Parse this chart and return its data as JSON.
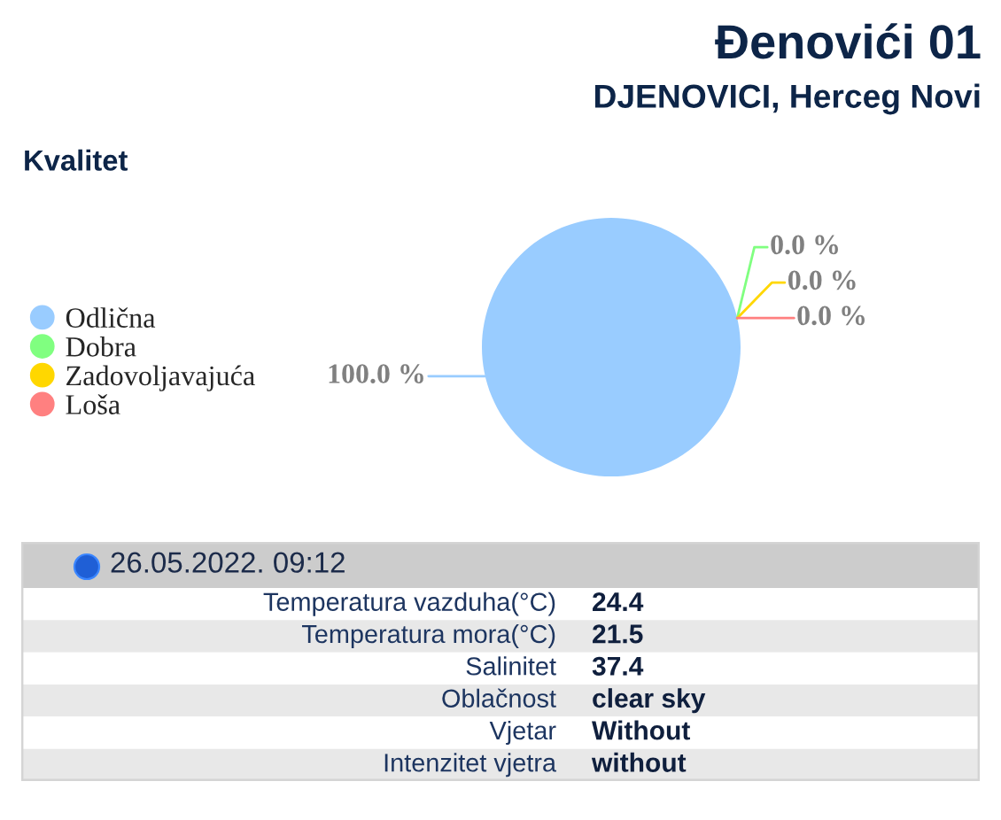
{
  "chart_data": [
    {
      "type": "other",
      "title": "Đenovići 01",
      "subtitle": "DJENOVICI, Herceg Novi"
    },
    {
      "type": "pie",
      "title": "Kvalitet",
      "categories": [
        "Odlična",
        "Dobra",
        "Zadovoljavajuća",
        "Loša"
      ],
      "values": [
        100,
        0,
        0,
        0
      ],
      "colors": [
        "#99ccff",
        "#80ff80",
        "#ffd700",
        "#ff8080"
      ],
      "value_labels": [
        "100.0 %",
        "0.0 %",
        "0.0 %",
        "0.0 %"
      ],
      "legend": "left"
    },
    {
      "type": "other",
      "title": "26.05.2022. 09:12",
      "annotations": [
        "Temperatura vazduha(°C)",
        "24.4",
        "Temperatura mora(°C)",
        "21.5",
        "Salinitet",
        "37.4",
        "Oblačnost",
        "clear sky",
        "Vjetar",
        "Without",
        "Intenzitet vjetra",
        "without"
      ]
    }
  ]
}
